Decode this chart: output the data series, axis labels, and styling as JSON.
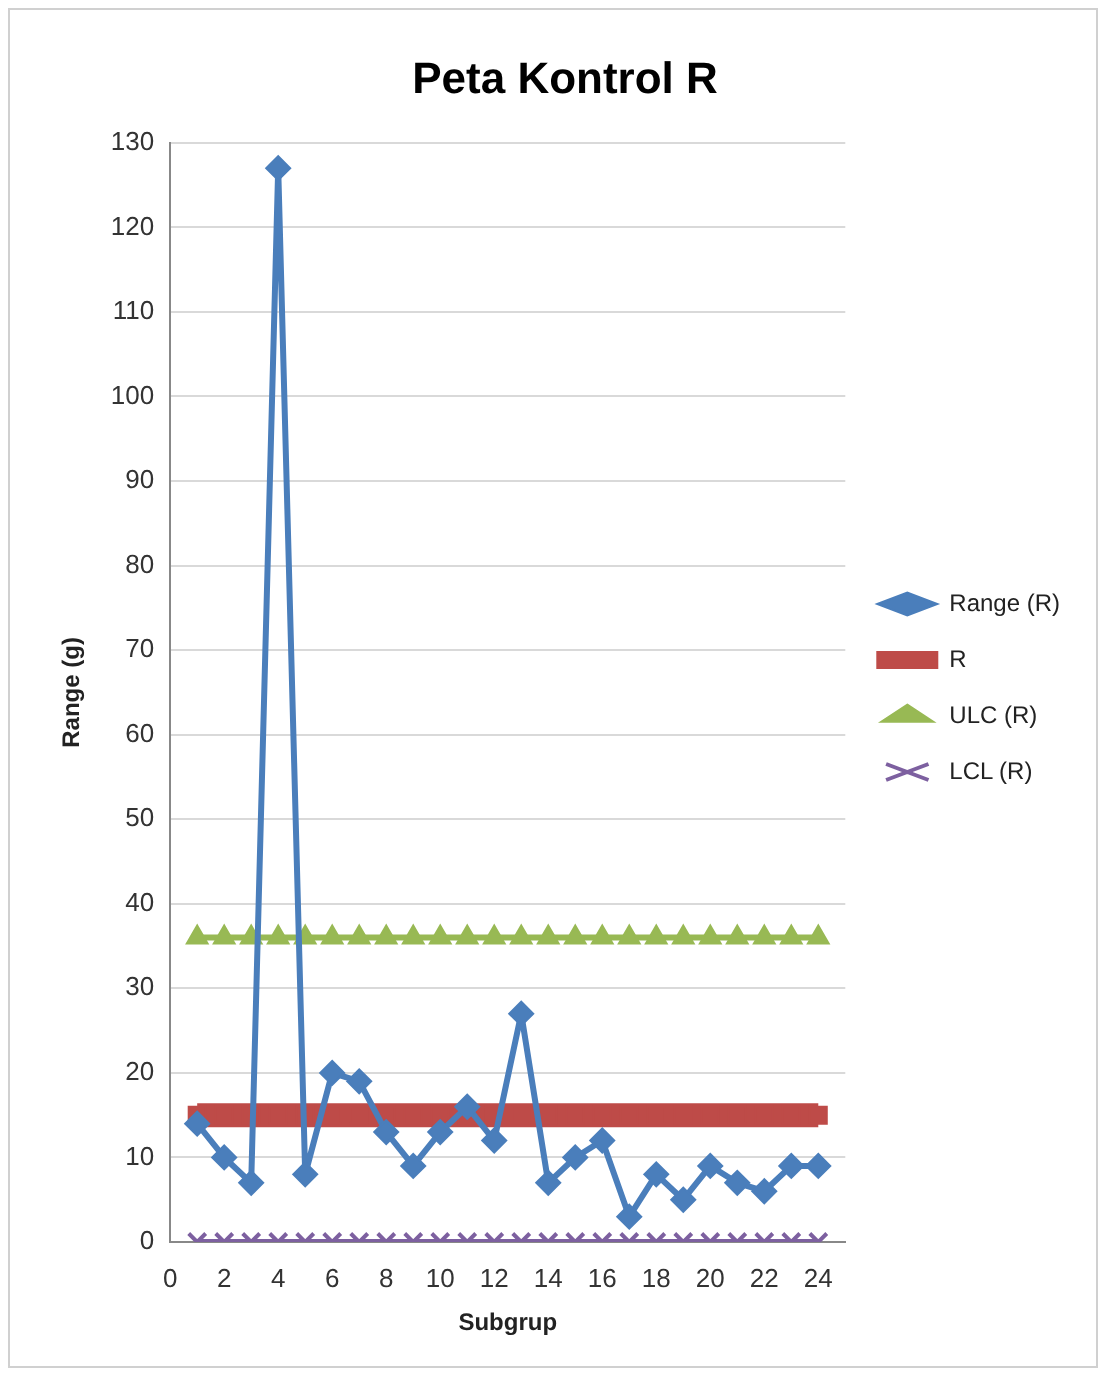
{
  "chart_data": {
    "type": "line",
    "title": "Peta Kontrol R",
    "xlabel": "Subgrup",
    "ylabel": "Range (g)",
    "x": [
      1,
      2,
      3,
      4,
      5,
      6,
      7,
      8,
      9,
      10,
      11,
      12,
      13,
      14,
      15,
      16,
      17,
      18,
      19,
      20,
      21,
      22,
      23,
      24
    ],
    "series": [
      {
        "name": "Range (R)",
        "color": "#4a7ebb",
        "marker": "diamond",
        "values": [
          14,
          10,
          7,
          127,
          8,
          20,
          19,
          13,
          9,
          13,
          16,
          12,
          27,
          7,
          10,
          12,
          3,
          8,
          5,
          9,
          7,
          6,
          9,
          9
        ]
      },
      {
        "name": "R",
        "color": "#be4b48",
        "marker": "square",
        "values": [
          15,
          15,
          15,
          15,
          15,
          15,
          15,
          15,
          15,
          15,
          15,
          15,
          15,
          15,
          15,
          15,
          15,
          15,
          15,
          15,
          15,
          15,
          15,
          15
        ]
      },
      {
        "name": "ULC (R)",
        "color": "#98b954",
        "marker": "triangle",
        "values": [
          36,
          36,
          36,
          36,
          36,
          36,
          36,
          36,
          36,
          36,
          36,
          36,
          36,
          36,
          36,
          36,
          36,
          36,
          36,
          36,
          36,
          36,
          36,
          36
        ]
      },
      {
        "name": "LCL (R)",
        "color": "#7d60a0",
        "marker": "cross",
        "values": [
          0,
          0,
          0,
          0,
          0,
          0,
          0,
          0,
          0,
          0,
          0,
          0,
          0,
          0,
          0,
          0,
          0,
          0,
          0,
          0,
          0,
          0,
          0,
          0
        ]
      }
    ],
    "xlim": [
      0,
      25
    ],
    "xticks": [
      0,
      2,
      4,
      6,
      8,
      10,
      12,
      14,
      16,
      18,
      20,
      22,
      24
    ],
    "ylim": [
      0,
      130
    ],
    "yticks": [
      0,
      10,
      20,
      30,
      40,
      50,
      60,
      70,
      80,
      90,
      100,
      110,
      120,
      130
    ],
    "grid": "y",
    "legend": "right"
  }
}
